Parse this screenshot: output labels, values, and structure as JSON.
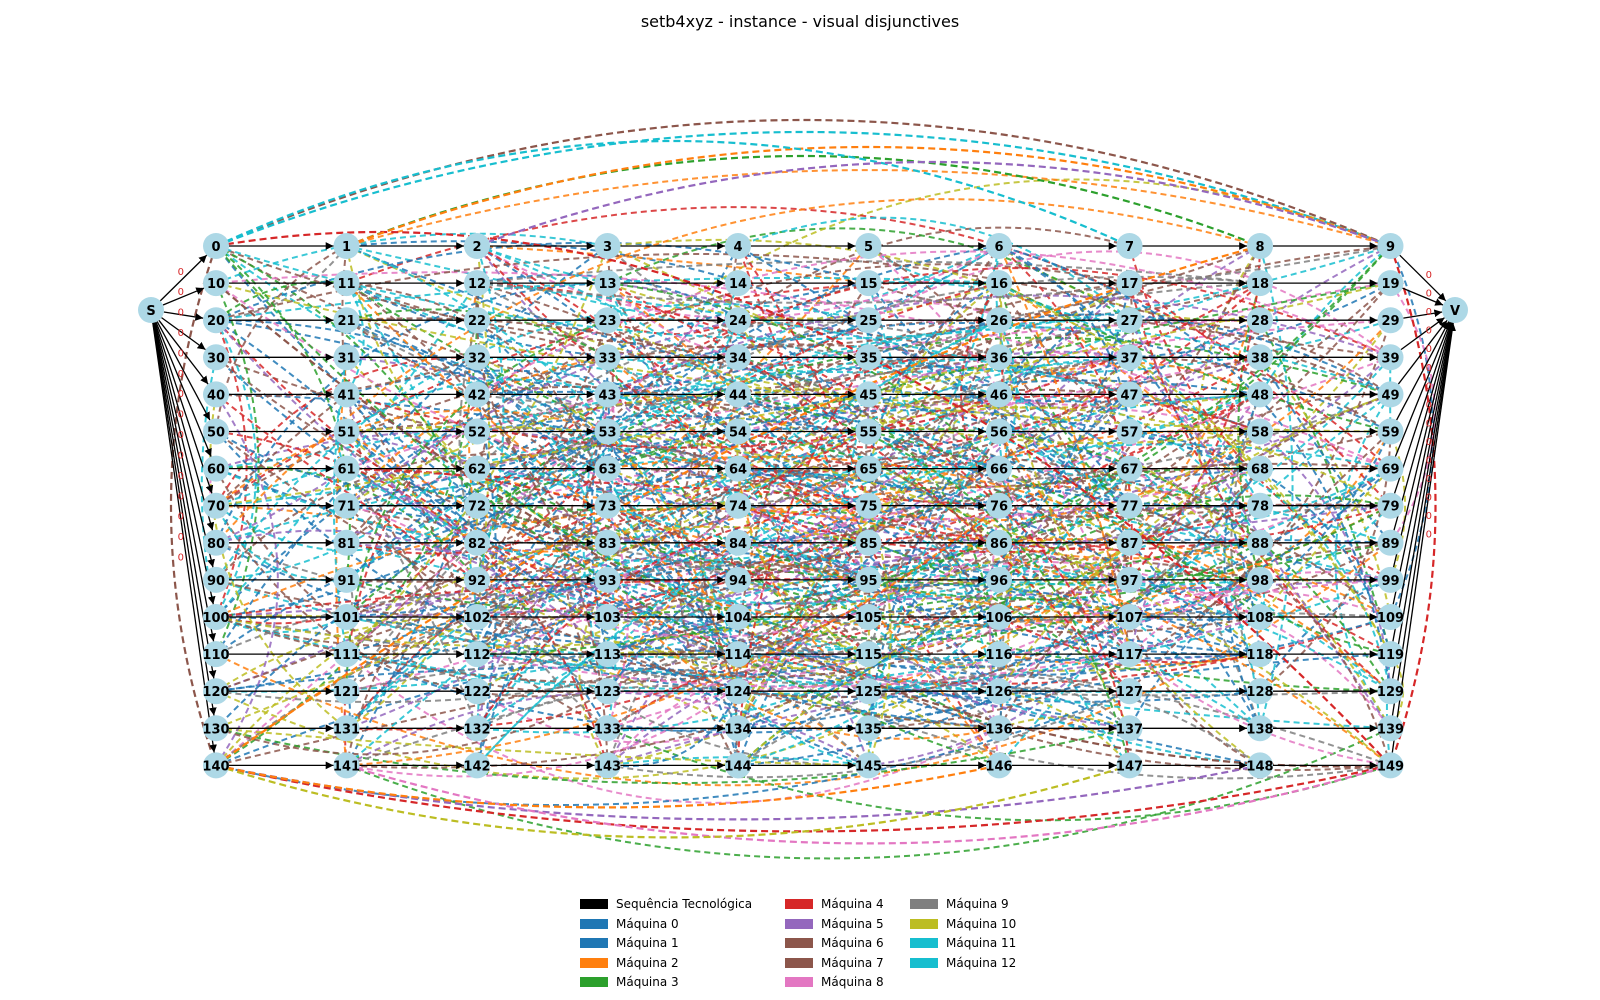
{
  "title": "setb4xyz - instance - visual disjunctives",
  "colors": {
    "node_fill": "#add8e6",
    "sequence_edge": "#000000",
    "zero_label": "#d62728",
    "machines": [
      "#1f77b4",
      "#1f77b4",
      "#ff7f0e",
      "#2ca02c",
      "#d62728",
      "#9467bd",
      "#8c564b",
      "#8c564b",
      "#e377c2",
      "#7f7f7f",
      "#bcbd22",
      "#17becf",
      "#17becf"
    ]
  },
  "source_node": "S",
  "sink_node": "V",
  "jobs": 15,
  "operations_per_job": 10,
  "node_ids": [
    [
      0,
      1,
      2,
      3,
      4,
      5,
      6,
      7,
      8,
      9
    ],
    [
      10,
      11,
      12,
      13,
      14,
      15,
      16,
      17,
      18,
      19
    ],
    [
      20,
      21,
      22,
      23,
      24,
      25,
      26,
      27,
      28,
      29
    ],
    [
      30,
      31,
      32,
      33,
      34,
      35,
      36,
      37,
      38,
      39
    ],
    [
      40,
      41,
      42,
      43,
      44,
      45,
      46,
      47,
      48,
      49
    ],
    [
      50,
      51,
      52,
      53,
      54,
      55,
      56,
      57,
      58,
      59
    ],
    [
      60,
      61,
      62,
      63,
      64,
      65,
      66,
      67,
      68,
      69
    ],
    [
      70,
      71,
      72,
      73,
      74,
      75,
      76,
      77,
      78,
      79
    ],
    [
      80,
      81,
      82,
      83,
      84,
      85,
      86,
      87,
      88,
      89
    ],
    [
      90,
      91,
      92,
      93,
      94,
      95,
      96,
      97,
      98,
      99
    ],
    [
      100,
      101,
      102,
      103,
      104,
      105,
      106,
      107,
      108,
      109
    ],
    [
      110,
      111,
      112,
      113,
      114,
      115,
      116,
      117,
      118,
      119
    ],
    [
      120,
      121,
      122,
      123,
      124,
      125,
      126,
      127,
      128,
      129
    ],
    [
      130,
      131,
      132,
      133,
      134,
      135,
      136,
      137,
      138,
      139
    ],
    [
      140,
      141,
      142,
      143,
      144,
      145,
      146,
      147,
      148,
      149
    ]
  ],
  "zero_label": "0",
  "legend": [
    {
      "label": "Sequência Tecnológica",
      "color": "#000000"
    },
    {
      "label": "Máquina 0",
      "color": "#1f77b4"
    },
    {
      "label": "Máquina 1",
      "color": "#1f77b4"
    },
    {
      "label": "Máquina 2",
      "color": "#ff7f0e"
    },
    {
      "label": "Máquina 3",
      "color": "#2ca02c"
    },
    {
      "label": "Máquina 4",
      "color": "#d62728"
    },
    {
      "label": "Máquina 5",
      "color": "#9467bd"
    },
    {
      "label": "Máquina 6",
      "color": "#8c564b"
    },
    {
      "label": "Máquina 7",
      "color": "#8c564b"
    },
    {
      "label": "Máquina 8",
      "color": "#e377c2"
    },
    {
      "label": "Máquina 9",
      "color": "#7f7f7f"
    },
    {
      "label": "Máquina 10",
      "color": "#bcbd22"
    },
    {
      "label": "Máquina 11",
      "color": "#17becf"
    },
    {
      "label": "Máquina 12",
      "color": "#17becf"
    }
  ]
}
